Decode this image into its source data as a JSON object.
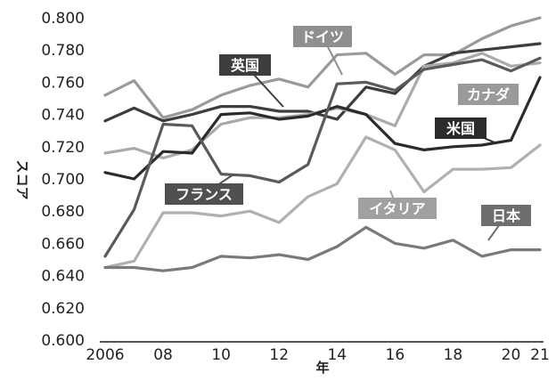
{
  "chart_data": {
    "type": "line",
    "xlabel": "年",
    "ylabel": "スコア",
    "ylim": [
      0.6,
      0.8
    ],
    "x_tick_labels": [
      "2006",
      "08",
      "10",
      "12",
      "14",
      "16",
      "18",
      "20",
      "21"
    ],
    "x_tick_years": [
      2006,
      2008,
      2010,
      2012,
      2014,
      2016,
      2018,
      2020,
      2021
    ],
    "y_tick_labels": [
      "0.600",
      "0.620",
      "0.640",
      "0.660",
      "0.680",
      "0.700",
      "0.720",
      "0.740",
      "0.760",
      "0.780",
      "0.800"
    ],
    "x": [
      2006,
      2007,
      2008,
      2009,
      2010,
      2011,
      2012,
      2013,
      2014,
      2015,
      2016,
      2017,
      2018,
      2019,
      2020,
      2021
    ],
    "grid": false,
    "series": [
      {
        "name": "ドイツ",
        "color": "#9a9a9a",
        "label_bg": "#8f8f8f",
        "values": [
          0.752,
          0.761,
          0.738,
          0.743,
          0.752,
          0.758,
          0.762,
          0.757,
          0.777,
          0.778,
          0.765,
          0.777,
          0.777,
          0.787,
          0.795,
          0.8
        ]
      },
      {
        "name": "英国",
        "color": "#3d3d3d",
        "label_bg": "#3d3d3d",
        "values": [
          0.736,
          0.744,
          0.736,
          0.74,
          0.745,
          0.745,
          0.742,
          0.742,
          0.737,
          0.757,
          0.753,
          0.77,
          0.778,
          0.78,
          0.782,
          0.784
        ]
      },
      {
        "name": "カナダ",
        "color": "#aaaaaa",
        "label_bg": "#9a9a9a",
        "values": [
          0.716,
          0.719,
          0.713,
          0.718,
          0.734,
          0.738,
          0.738,
          0.74,
          0.744,
          0.74,
          0.733,
          0.77,
          0.772,
          0.778,
          0.77,
          0.772
        ]
      },
      {
        "name": "米国",
        "color": "#2b2b2b",
        "label_bg": "#2b2b2b",
        "values": [
          0.704,
          0.7,
          0.717,
          0.716,
          0.74,
          0.741,
          0.737,
          0.739,
          0.745,
          0.74,
          0.722,
          0.718,
          0.72,
          0.721,
          0.724,
          0.763
        ]
      },
      {
        "name": "フランス",
        "color": "#5a5a5a",
        "label_bg": "#505050",
        "values": [
          0.652,
          0.681,
          0.734,
          0.733,
          0.703,
          0.702,
          0.698,
          0.709,
          0.759,
          0.76,
          0.755,
          0.768,
          0.771,
          0.774,
          0.767,
          0.775
        ]
      },
      {
        "name": "イタリア",
        "color": "#b0b0b0",
        "label_bg": "#a0a0a0",
        "values": [
          0.645,
          0.649,
          0.679,
          0.679,
          0.677,
          0.68,
          0.673,
          0.689,
          0.697,
          0.726,
          0.718,
          0.692,
          0.706,
          0.706,
          0.707,
          0.721
        ]
      },
      {
        "name": "日本",
        "color": "#7a7a7a",
        "label_bg": "#6e6e6e",
        "values": [
          0.645,
          0.645,
          0.643,
          0.645,
          0.652,
          0.651,
          0.653,
          0.65,
          0.658,
          0.67,
          0.66,
          0.657,
          0.662,
          0.652,
          0.656,
          0.656
        ]
      }
    ]
  }
}
